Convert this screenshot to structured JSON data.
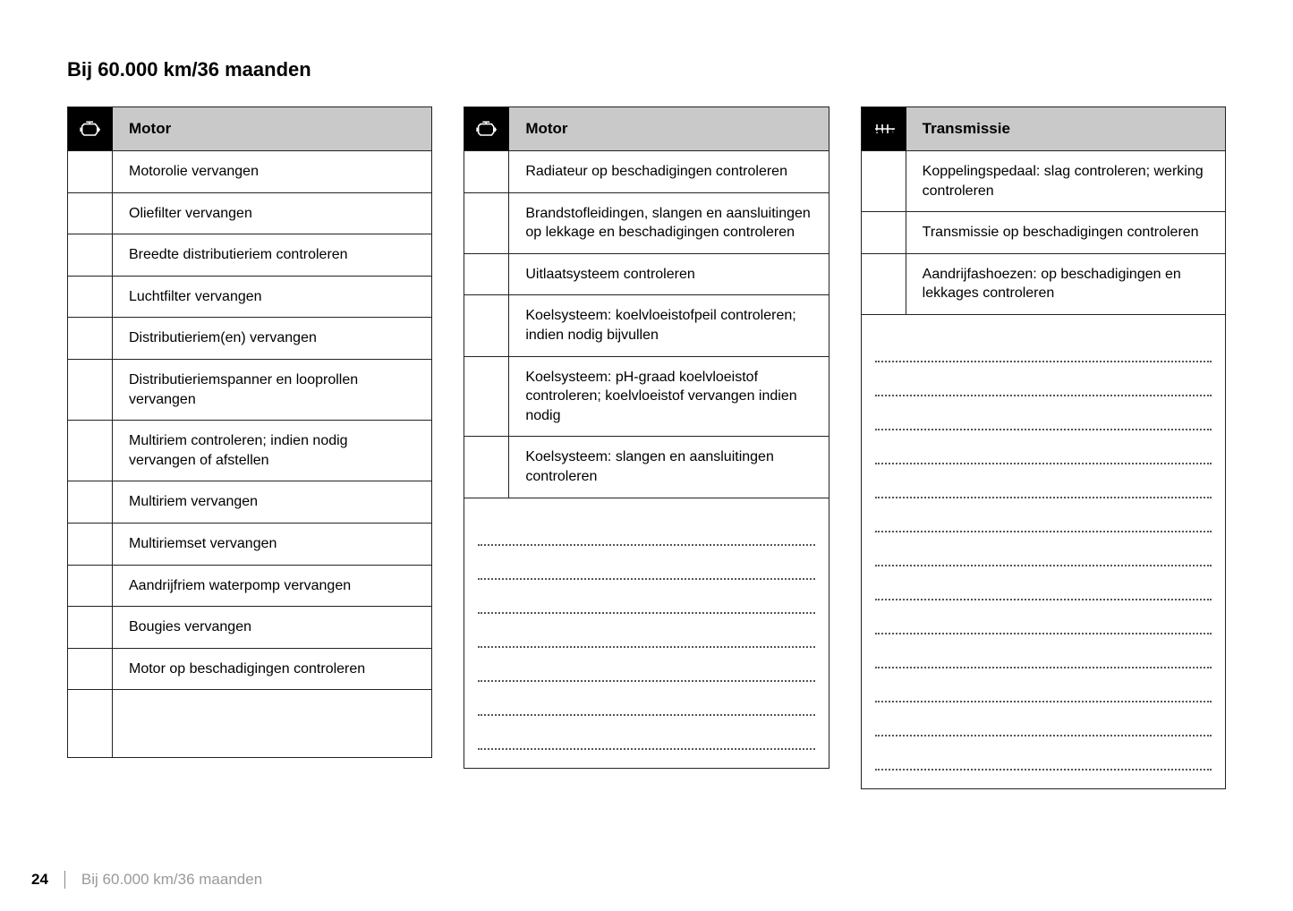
{
  "title": "Bij 60.000 km/36 maanden",
  "footer": {
    "page": "24",
    "text": "Bij 60.000 km/36 maanden"
  },
  "columns": [
    {
      "have_header": true,
      "icon": "engine",
      "header": "Motor",
      "rows": [
        "Motorolie vervangen",
        "Oliefilter vervangen",
        "Breedte distributieriem controleren",
        "Luchtfilter vervangen",
        "Distributieriem(en) vervangen",
        "Distributieriemspanner en looprollen vervangen",
        "Multiriem controleren; indien nodig vervangen of afstellen",
        "Multiriem vervangen",
        "Multiriemset vervangen",
        "Aandrijfriem waterpomp vervangen",
        "Bougies vervangen",
        "Motor op beschadigingen controleren"
      ],
      "blank_rows_height": 75,
      "dot_lines": 0
    },
    {
      "have_header": true,
      "icon": "engine",
      "header": "Motor",
      "rows": [
        "Radiateur op beschadigingen controleren",
        "Brandstofleidingen, slangen en aansluitingen op lekkage en beschadigingen controleren",
        "Uitlaatsysteem controleren",
        "Koelsysteem: koelvloeistofpeil controleren; indien nodig bijvullen",
        "Koelsysteem: pH-graad koelvloeistof controleren; koelvloeistof vervangen indien nodig",
        "Koelsysteem: slangen en aansluitingen controleren"
      ],
      "blank_rows_height": 0,
      "dot_lines": 7
    },
    {
      "have_header": true,
      "icon": "gear",
      "header": "Transmissie",
      "rows": [
        "Koppelingspedaal: slag controleren; werking controleren",
        "Transmissie op beschadigingen controleren",
        "Aandrijfashoezen: op beschadigingen en lekkages controleren"
      ],
      "blank_rows_height": 0,
      "dot_lines": 13
    }
  ]
}
